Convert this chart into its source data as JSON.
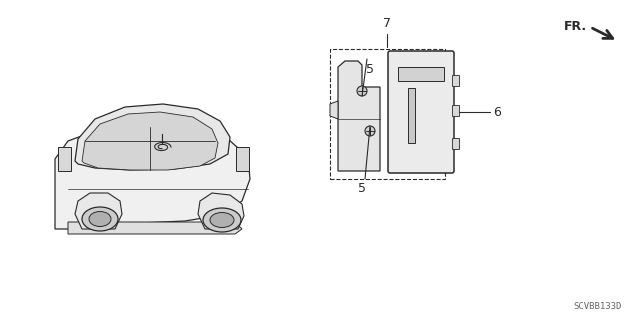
{
  "bg_color": "#ffffff",
  "line_color": "#2a2a2a",
  "diagram_title": "SCVBB133D",
  "fr_label": "FR.",
  "label_7": "7",
  "label_6": "6",
  "label_5a": "5",
  "label_5b": "5",
  "figsize": [
    6.4,
    3.19
  ],
  "dpi": 100
}
